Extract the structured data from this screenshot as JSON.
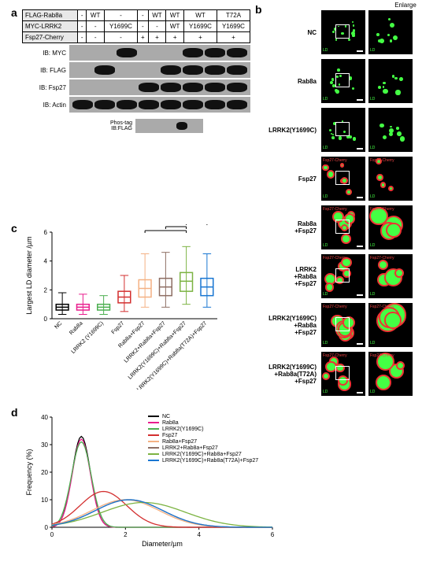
{
  "panels": {
    "a": "a",
    "b": "b",
    "c": "c",
    "d": "d"
  },
  "panelA": {
    "rows": [
      {
        "label": "FLAG-Rab8a",
        "vals": [
          "-",
          "WT",
          "-",
          "-",
          "WT",
          "WT",
          "WT",
          "T72A"
        ]
      },
      {
        "label": "MYC-LRRK2",
        "vals": [
          "-",
          "-",
          "Y1699C",
          "-",
          "-",
          "WT",
          "Y1699C",
          "Y1699C"
        ]
      },
      {
        "label": "Fsp27-Cherry",
        "vals": [
          "-",
          "-",
          "-",
          "+",
          "+",
          "+",
          "+",
          "+"
        ]
      }
    ],
    "blots": [
      {
        "label": "IB: MYC",
        "bands": [
          0,
          0,
          1,
          0,
          0,
          1,
          1,
          1
        ]
      },
      {
        "label": "IB: FLAG",
        "bands": [
          0,
          1,
          0,
          0,
          1,
          1,
          1,
          1
        ]
      },
      {
        "label": "IB: Fsp27",
        "bands": [
          0,
          0,
          0,
          1,
          1,
          1,
          1,
          1
        ]
      },
      {
        "label": "IB: Actin",
        "bands": [
          1,
          1,
          1,
          1,
          1,
          1,
          1,
          1
        ]
      }
    ],
    "phostag": {
      "label": "Phos-tag\nIB:FLAG",
      "bands": [
        0,
        0,
        0,
        1,
        0
      ]
    }
  },
  "panelB": {
    "enlarge_header": "Enlarge",
    "rows": [
      {
        "label": "NC",
        "has_red": false,
        "ld_size": "small"
      },
      {
        "label": "Rab8a",
        "has_red": false,
        "ld_size": "small"
      },
      {
        "label": "LRRK2(Y1699C)",
        "has_red": false,
        "ld_size": "small"
      },
      {
        "label": "Fsp27",
        "has_red": true,
        "ld_size": "medium"
      },
      {
        "label": "Rab8a\n+Fsp27",
        "has_red": true,
        "ld_size": "large"
      },
      {
        "label": "LRRK2\n+Rab8a\n+Fsp27",
        "has_red": true,
        "ld_size": "large"
      },
      {
        "label": "LRRK2(Y1699C)\n+Rab8a\n+Fsp27",
        "has_red": true,
        "ld_size": "xlarge"
      },
      {
        "label": "LRRK2(Y1699C)\n+Rab8a(T72A)\n+Fsp27",
        "has_red": true,
        "ld_size": "large"
      }
    ],
    "red_marker": "Fsp27-Cherry",
    "green_marker": "LD"
  },
  "panelC": {
    "ylabel": "Largest LD diameter /µm",
    "ylim": [
      0,
      6
    ],
    "yticks": [
      0,
      2,
      4,
      6
    ],
    "categories": [
      "NC",
      "Rab8a",
      "LRRK2 (Y1699C)",
      "Fsp27",
      "Rab8a+Fsp27",
      "LRRK2+Rab8a+Fsp27",
      "LRRK2(Y1699C)+Rab8a+Fsp27",
      "LRRK2(Y1699C)+Rab8a(T72A)+Fsp27"
    ],
    "boxes": [
      {
        "median": 0.8,
        "q1": 0.6,
        "q3": 1.0,
        "lo": 0.3,
        "hi": 1.8,
        "color": "#000000"
      },
      {
        "median": 0.8,
        "q1": 0.6,
        "q3": 1.0,
        "lo": 0.3,
        "hi": 1.7,
        "color": "#e91e8e"
      },
      {
        "median": 0.8,
        "q1": 0.6,
        "q3": 1.0,
        "lo": 0.3,
        "hi": 1.6,
        "color": "#4caf50"
      },
      {
        "median": 1.5,
        "q1": 1.1,
        "q3": 1.9,
        "lo": 0.5,
        "hi": 3.0,
        "color": "#d32f2f"
      },
      {
        "median": 2.1,
        "q1": 1.5,
        "q3": 2.7,
        "lo": 0.8,
        "hi": 4.5,
        "color": "#f4b183"
      },
      {
        "median": 2.2,
        "q1": 1.6,
        "q3": 2.8,
        "lo": 0.8,
        "hi": 4.6,
        "color": "#8d6e63"
      },
      {
        "median": 2.6,
        "q1": 1.9,
        "q3": 3.2,
        "lo": 1.0,
        "hi": 5.0,
        "color": "#7cb342"
      },
      {
        "median": 2.2,
        "q1": 1.6,
        "q3": 2.8,
        "lo": 0.8,
        "hi": 4.5,
        "color": "#1976d2"
      }
    ],
    "sig": {
      "label": "***",
      "bars": [
        [
          4,
          6
        ],
        [
          5,
          6
        ],
        [
          7,
          6
        ]
      ]
    }
  },
  "panelD": {
    "xlabel": "Diameter/µm",
    "ylabel": "Frequency (%)",
    "xlim": [
      0,
      6
    ],
    "ylim": [
      0,
      40
    ],
    "xticks": [
      0,
      2,
      4,
      6
    ],
    "yticks": [
      0,
      10,
      20,
      30,
      40
    ],
    "series": [
      {
        "name": "NC",
        "color": "#000000",
        "peak_x": 0.8,
        "peak_y": 33,
        "width": 0.35
      },
      {
        "name": "Rab8a",
        "color": "#e91e8e",
        "peak_x": 0.8,
        "peak_y": 32,
        "width": 0.35
      },
      {
        "name": "LRRK2(Y1699C)",
        "color": "#4caf50",
        "peak_x": 0.8,
        "peak_y": 31,
        "width": 0.38
      },
      {
        "name": "Fsp27",
        "color": "#d32f2f",
        "peak_x": 1.4,
        "peak_y": 13,
        "width": 0.9
      },
      {
        "name": "Rab8a+Fsp27",
        "color": "#f4b183",
        "peak_x": 2.0,
        "peak_y": 10,
        "width": 1.3
      },
      {
        "name": "LRRK2+Rab8a+Fsp27",
        "color": "#8d6e63",
        "peak_x": 2.1,
        "peak_y": 10,
        "width": 1.3
      },
      {
        "name": "LRRK2(Y1699C)+Rab8a+Fsp27",
        "color": "#7cb342",
        "peak_x": 2.5,
        "peak_y": 9,
        "width": 1.6
      },
      {
        "name": "LRRK2(Y1699C)+Rab8a(T72A)+Fsp27",
        "color": "#1976d2",
        "peak_x": 2.1,
        "peak_y": 10,
        "width": 1.3
      }
    ]
  }
}
